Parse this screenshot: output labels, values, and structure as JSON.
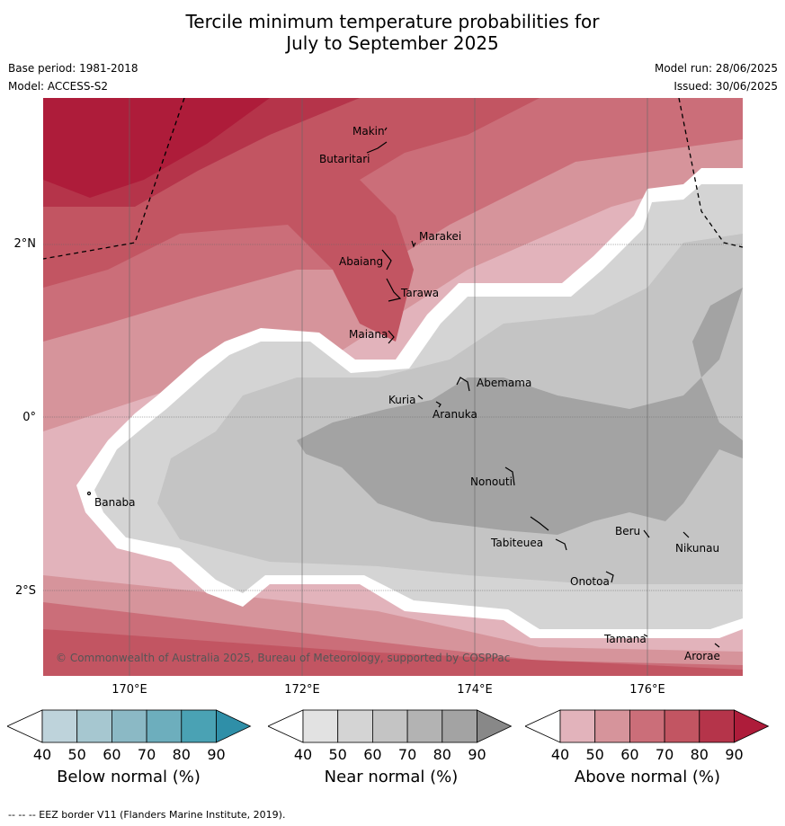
{
  "title_line1": "Tercile minimum temperature probabilities for",
  "title_line2": "July to September 2025",
  "base_period": "Base period: 1981-2018",
  "model": "Model: ACCESS-S2",
  "model_run": "Model run: 28/06/2025",
  "issued": "Issued: 30/06/2025",
  "lat_labels": [
    "2°N",
    "0°",
    "2°S"
  ],
  "lon_labels": [
    "170°E",
    "172°E",
    "174°E",
    "176°E"
  ],
  "copyright": "© Commonwealth of Australia 2025, Bureau of Meteorology, supported by COSPPac",
  "islands": [
    "Makin",
    "Butaritari",
    "Marakei",
    "Abaiang",
    "Tarawa",
    "Maiana",
    "Abemama",
    "Kuria",
    "Aranuka",
    "Banaba",
    "Nonouti",
    "Tabiteuea",
    "Beru",
    "Nikunau",
    "Onotoa",
    "Tamana",
    "Arorae"
  ],
  "colorbars": [
    {
      "label": "Below normal (%)",
      "ticks": [
        "40",
        "50",
        "60",
        "70",
        "80",
        "90"
      ],
      "colors": [
        "#ffffff",
        "#bed3db",
        "#a6c7d0",
        "#8bb9c5",
        "#6daebd",
        "#4aa2b4",
        "#2f8fa8"
      ]
    },
    {
      "label": "Near normal (%)",
      "ticks": [
        "40",
        "50",
        "60",
        "70",
        "80",
        "90"
      ],
      "colors": [
        "#ffffff",
        "#e2e2e2",
        "#d4d4d4",
        "#c4c4c4",
        "#b3b3b3",
        "#a3a3a3",
        "#888888"
      ]
    },
    {
      "label": "Above normal (%)",
      "ticks": [
        "40",
        "50",
        "60",
        "70",
        "80",
        "90"
      ],
      "colors": [
        "#ffffff",
        "#e2b3bb",
        "#d6949b",
        "#cb6e79",
        "#c25562",
        "#b5344a",
        "#ae1c3a"
      ]
    }
  ],
  "footer": "-- -- -- EEZ border V11 (Flanders Marine Institute, 2019)."
}
